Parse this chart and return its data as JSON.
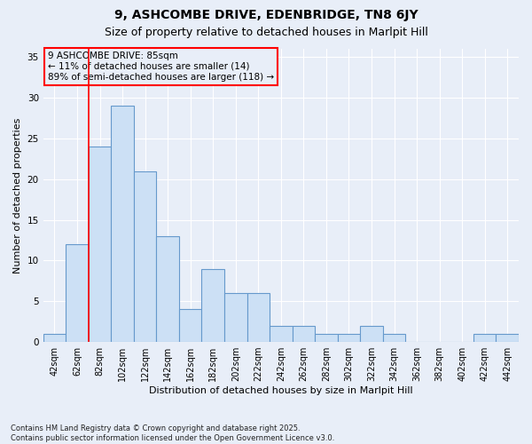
{
  "title1": "9, ASHCOMBE DRIVE, EDENBRIDGE, TN8 6JY",
  "title2": "Size of property relative to detached houses in Marlpit Hill",
  "xlabel": "Distribution of detached houses by size in Marlpit Hill",
  "ylabel": "Number of detached properties",
  "categories": [
    "42sqm",
    "62sqm",
    "82sqm",
    "102sqm",
    "122sqm",
    "142sqm",
    "162sqm",
    "182sqm",
    "202sqm",
    "222sqm",
    "242sqm",
    "262sqm",
    "282sqm",
    "302sqm",
    "322sqm",
    "342sqm",
    "362sqm",
    "382sqm",
    "402sqm",
    "422sqm",
    "442sqm"
  ],
  "values": [
    1,
    12,
    24,
    29,
    21,
    13,
    4,
    9,
    6,
    6,
    2,
    2,
    1,
    1,
    2,
    1,
    0,
    0,
    0,
    1,
    1
  ],
  "bar_color": "#cce0f5",
  "bar_edge_color": "#6699cc",
  "red_line_index": 2,
  "ylim": [
    0,
    36
  ],
  "yticks": [
    0,
    5,
    10,
    15,
    20,
    25,
    30,
    35
  ],
  "background_color": "#e8eef8",
  "grid_color": "#ffffff",
  "annotation_text": "9 ASHCOMBE DRIVE: 85sqm\n← 11% of detached houses are smaller (14)\n89% of semi-detached houses are larger (118) →",
  "footer": "Contains HM Land Registry data © Crown copyright and database right 2025.\nContains public sector information licensed under the Open Government Licence v3.0.",
  "title_fontsize": 10,
  "subtitle_fontsize": 9,
  "axis_fontsize": 8,
  "tick_fontsize": 7,
  "ann_fontsize": 7.5
}
